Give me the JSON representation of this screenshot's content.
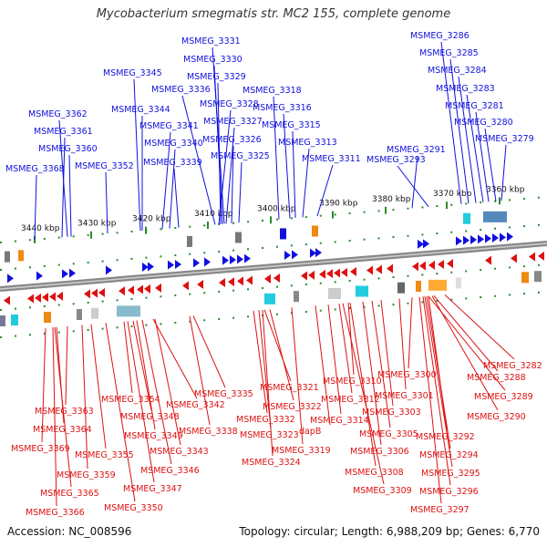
{
  "title": "Mycobacterium smegmatis str. MC2 155, complete genome",
  "footer": {
    "accession": "Accession: NC_008596",
    "summary": "Topology: circular; Length: 6,988,209 bp; Genes: 6,770"
  },
  "colors": {
    "forward": "#1010dd",
    "reverse": "#dd1111",
    "backbone": "#888888",
    "tick": "#2a8a2a"
  },
  "ticks": [
    "3440 kbp",
    "3430 kbp",
    "3420 kbp",
    "3410 kbp",
    "3400 kbp",
    "3390 kbp",
    "3380 kbp",
    "3370 kbp",
    "3360 kbp"
  ],
  "forward_genes": [
    "MSMEG_3331",
    "MSMEG_3330",
    "MSMEG_3329",
    "MSMEG_3345",
    "MSMEG_3336",
    "MSMEG_3328",
    "MSMEG_3344",
    "MSMEG_3327",
    "MSMEG_3362",
    "MSMEG_3341",
    "MSMEG_3361",
    "MSMEG_3326",
    "MSMEG_3340",
    "MSMEG_3360",
    "MSMEG_3325",
    "MSMEG_3339",
    "MSMEG_3352",
    "MSMEG_3368",
    "MSMEG_3318",
    "MSMEG_3316",
    "MSMEG_3315",
    "MSMEG_3313",
    "MSMEG_3311",
    "MSMEG_3291",
    "MSMEG_3293",
    "MSMEG_3286",
    "MSMEG_3285",
    "MSMEG_3284",
    "MSMEG_3283",
    "MSMEG_3281",
    "MSMEG_3280",
    "MSMEG_3279"
  ],
  "reverse_genes": [
    "MSMEG_3282",
    "MSMEG_3288",
    "MSMEG_3300",
    "MSMEG_3310",
    "MSMEG_3321",
    "MSMEG_3289",
    "MSMEG_3301",
    "MSMEG_3335",
    "MSMEG_3312",
    "MSMEG_3354",
    "MSMEG_3342",
    "MSMEG_3322",
    "MSMEG_3363",
    "MSMEG_3348",
    "MSMEG_3332",
    "MSMEG_3314",
    "MSMEG_3303",
    "MSMEG_3290",
    "MSMEG_3338",
    "MSMEG_3349",
    "MSMEG_3364",
    "MSMEG_3323",
    "MSMEG_3305",
    "MSMEG_3292",
    "MSMEG_3319",
    "MSMEG_3343",
    "MSMEG_3306",
    "MSMEG_3369",
    "MSMEG_3355",
    "MSMEG_3294",
    "MSMEG_3324",
    "MSMEG_3346",
    "MSMEG_3308",
    "MSMEG_3295",
    "MSMEG_3359",
    "MSMEG_3347",
    "MSMEG_3309",
    "MSMEG_3365",
    "MSMEG_3296",
    "MSMEG_3350",
    "MSMEG_3366",
    "MSMEG_3297",
    "dapB"
  ]
}
